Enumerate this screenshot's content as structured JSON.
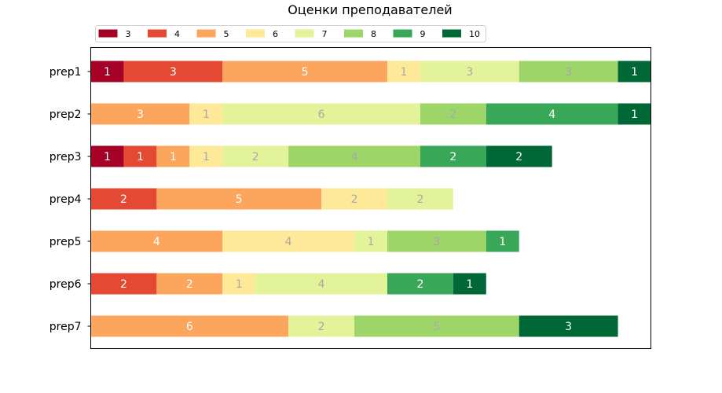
{
  "chart_data": {
    "type": "bar",
    "orientation": "horizontal",
    "stacked": true,
    "title": "Оценки преподавателей",
    "categories": [
      "prep1",
      "prep2",
      "prep3",
      "prep4",
      "prep5",
      "prep6",
      "prep7"
    ],
    "series": [
      {
        "name": "3",
        "color": "#a50026",
        "values": [
          1,
          0,
          1,
          0,
          0,
          0,
          0
        ]
      },
      {
        "name": "4",
        "color": "#e34933",
        "values": [
          3,
          0,
          1,
          2,
          0,
          2,
          0
        ]
      },
      {
        "name": "5",
        "color": "#fca55d",
        "values": [
          5,
          3,
          1,
          5,
          4,
          2,
          6
        ]
      },
      {
        "name": "6",
        "color": "#fee999",
        "values": [
          1,
          1,
          1,
          2,
          4,
          1,
          0
        ]
      },
      {
        "name": "7",
        "color": "#e3f399",
        "values": [
          3,
          6,
          2,
          2,
          1,
          4,
          2
        ]
      },
      {
        "name": "8",
        "color": "#9dd569",
        "values": [
          3,
          2,
          4,
          0,
          3,
          0,
          5
        ]
      },
      {
        "name": "9",
        "color": "#39a758",
        "values": [
          0,
          4,
          2,
          0,
          1,
          2,
          0
        ]
      },
      {
        "name": "10",
        "color": "#006837",
        "values": [
          1,
          1,
          2,
          0,
          0,
          1,
          3
        ]
      }
    ],
    "xlim": [
      0,
      17
    ],
    "x_axis_visible": false,
    "grid": false,
    "legend": "top-left, above plot, horizontal",
    "bar_label_colors": {
      "light_text": "#ffffff",
      "dark_text": "#a9a9a9"
    }
  }
}
